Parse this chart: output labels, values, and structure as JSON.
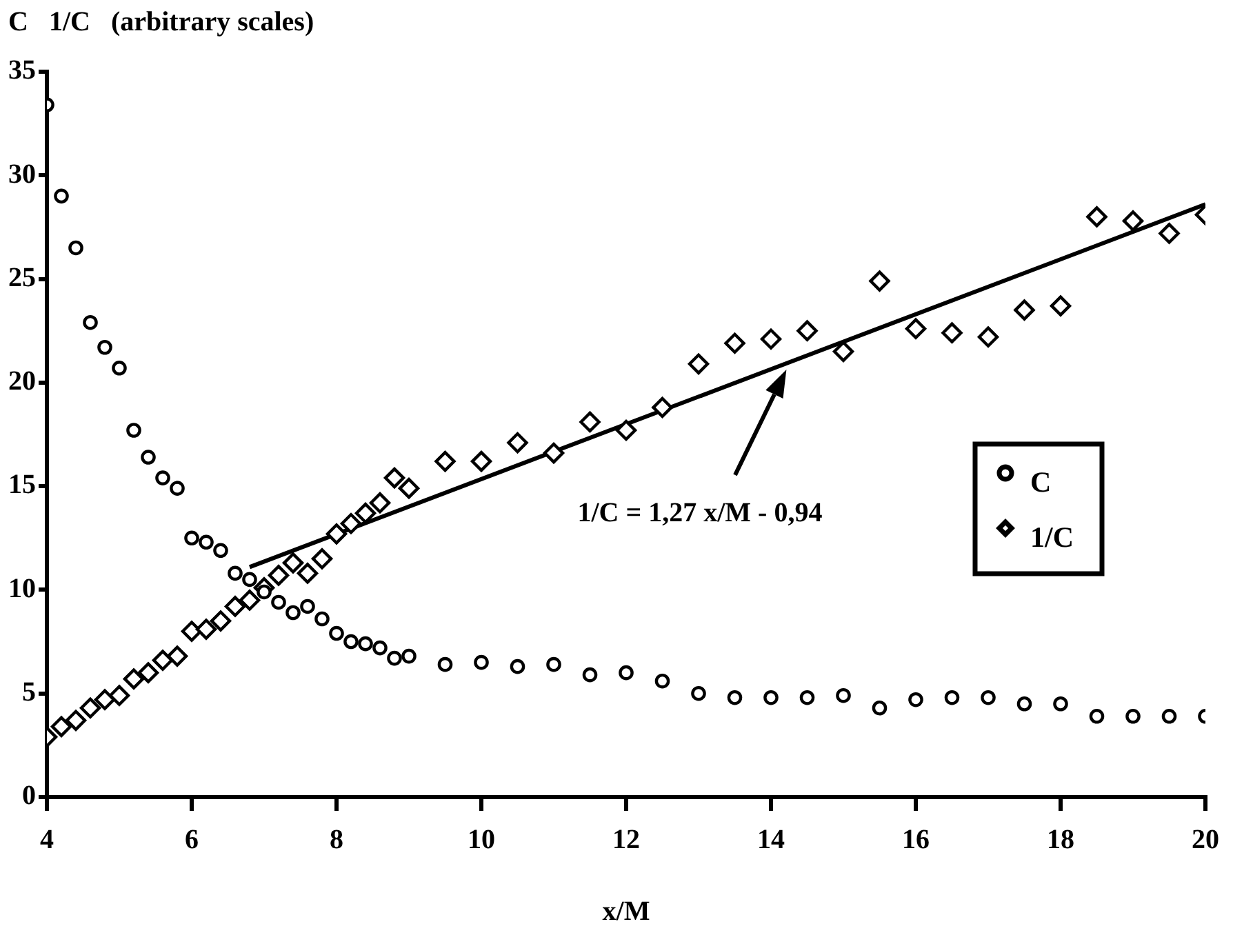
{
  "chart_data": {
    "type": "scatter",
    "ylabel": "C   1/C   (arbitrary scales)",
    "xlabel": "x/M",
    "xlim": [
      4,
      20
    ],
    "ylim": [
      0,
      35
    ],
    "xticks": [
      4,
      6,
      8,
      10,
      12,
      14,
      16,
      18,
      20
    ],
    "yticks": [
      0,
      5,
      10,
      15,
      20,
      25,
      30,
      35
    ],
    "grid": false,
    "legend": "right",
    "annotations": [
      "1/C = 1,27 x/M - 0,94"
    ],
    "series": [
      {
        "name": "C",
        "marker": "circle",
        "color": "#000000",
        "x": [
          4,
          4.2,
          4.4,
          4.6,
          4.8,
          5,
          5.2,
          5.4,
          5.6,
          5.8,
          6,
          6.2,
          6.4,
          6.6,
          6.8,
          7,
          7.2,
          7.4,
          7.6,
          7.8,
          8,
          8.2,
          8.4,
          8.6,
          8.8,
          9,
          9.5,
          10,
          10.5,
          11,
          11.5,
          12,
          12.5,
          13,
          13.5,
          14,
          14.5,
          15,
          15.5,
          16,
          16.5,
          17,
          17.5,
          18,
          18.5,
          19,
          19.5,
          20
        ],
        "values": [
          33.4,
          29.0,
          26.5,
          22.9,
          21.7,
          20.7,
          17.7,
          16.4,
          15.4,
          14.9,
          12.5,
          12.3,
          11.9,
          10.8,
          10.5,
          9.9,
          9.4,
          8.9,
          9.2,
          8.6,
          7.9,
          7.5,
          7.4,
          7.2,
          6.7,
          6.8,
          6.4,
          6.5,
          6.3,
          6.4,
          5.9,
          6.0,
          5.6,
          5.0,
          4.8,
          4.8,
          4.8,
          4.9,
          4.3,
          4.7,
          4.8,
          4.8,
          4.5,
          4.5,
          3.9,
          3.9,
          3.9,
          3.9
        ]
      },
      {
        "name": "1/C",
        "marker": "diamond",
        "color": "#000000",
        "x": [
          4,
          4.2,
          4.4,
          4.6,
          4.8,
          5,
          5.2,
          5.4,
          5.6,
          5.8,
          6,
          6.2,
          6.4,
          6.6,
          6.8,
          7,
          7.2,
          7.4,
          7.6,
          7.8,
          8,
          8.2,
          8.4,
          8.6,
          8.8,
          9,
          9.5,
          10,
          10.5,
          11,
          11.5,
          12,
          12.5,
          13,
          13.5,
          14,
          14.5,
          15,
          15.5,
          16,
          16.5,
          17,
          17.5,
          18,
          18.5,
          19,
          19.5,
          20
        ],
        "values": [
          2.9,
          3.4,
          3.7,
          4.3,
          4.7,
          4.9,
          5.7,
          6.0,
          6.6,
          6.8,
          8.0,
          8.1,
          8.5,
          9.2,
          9.5,
          10.1,
          10.7,
          11.3,
          10.8,
          11.5,
          12.7,
          13.2,
          13.7,
          14.2,
          15.4,
          14.9,
          16.2,
          16.2,
          17.1,
          16.6,
          18.1,
          17.7,
          18.8,
          20.9,
          21.9,
          22.1,
          22.5,
          21.5,
          24.9,
          22.6,
          22.4,
          22.2,
          23.5,
          23.7,
          28.0,
          27.8,
          27.2,
          28.1
        ]
      },
      {
        "type": "line",
        "marker": "none",
        "line_style": "solid",
        "color": "#000000",
        "x": [
          6.8,
          20
        ],
        "values": [
          11.1,
          28.6
        ]
      }
    ]
  }
}
